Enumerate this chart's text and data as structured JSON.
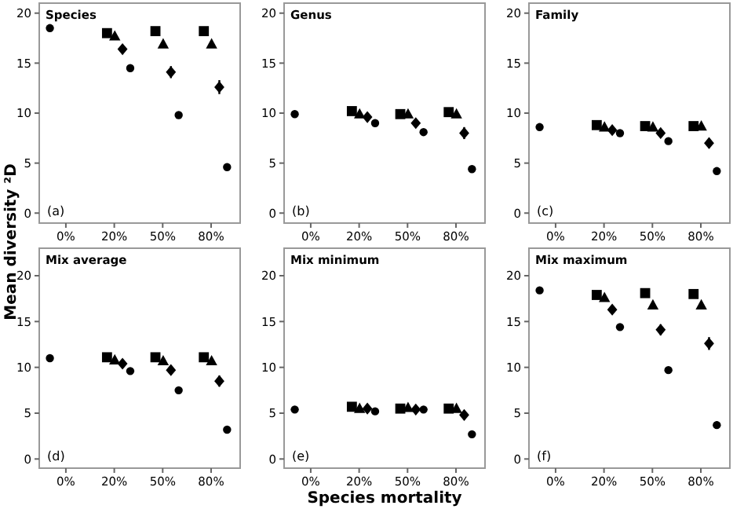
{
  "chart_data": [
    {
      "type": "scatter",
      "title": "Species",
      "ylabel": "Mean diversity ²D",
      "annotations": [
        "(a)"
      ],
      "categories": [
        "0%",
        "20%",
        "50%",
        "80%"
      ],
      "ylim": [
        -1,
        21
      ],
      "yticks": [
        0,
        5,
        10,
        15,
        20
      ],
      "series": [
        {
          "color": "#000000",
          "marker": "circle",
          "x": [
            "0%"
          ],
          "values": [
            18.5
          ]
        },
        {
          "color": "#000000",
          "marker": "square",
          "x": [
            "20%",
            "50%",
            "80%"
          ],
          "values": [
            18.0,
            18.2,
            18.2
          ]
        },
        {
          "color": "#000000",
          "marker": "triangle",
          "x": [
            "20%",
            "50%",
            "80%"
          ],
          "values": [
            17.7,
            16.9,
            16.9
          ]
        },
        {
          "color": "#000000",
          "marker": "diamond",
          "x": [
            "20%",
            "50%",
            "80%"
          ],
          "values": [
            16.4,
            14.1,
            12.6
          ],
          "errors": [
            0.3,
            0.6,
            0.7
          ]
        },
        {
          "color": "#000000",
          "marker": "circle",
          "x": [
            "20%",
            "50%",
            "80%"
          ],
          "values": [
            14.5,
            9.8,
            4.6
          ]
        }
      ]
    },
    {
      "type": "scatter",
      "title": "Genus",
      "annotations": [
        "(b)"
      ],
      "categories": [
        "0%",
        "20%",
        "50%",
        "80%"
      ],
      "ylim": [
        -1,
        21
      ],
      "yticks": [
        0,
        5,
        10,
        15,
        20
      ],
      "series": [
        {
          "color": "#000000",
          "marker": "circle",
          "x": [
            "0%"
          ],
          "values": [
            9.9
          ]
        },
        {
          "color": "#000000",
          "marker": "square",
          "x": [
            "20%",
            "50%",
            "80%"
          ],
          "values": [
            10.2,
            9.9,
            10.1
          ]
        },
        {
          "color": "#000000",
          "marker": "triangle",
          "x": [
            "20%",
            "50%",
            "80%"
          ],
          "values": [
            9.9,
            9.9,
            9.9
          ]
        },
        {
          "color": "#000000",
          "marker": "diamond",
          "x": [
            "20%",
            "50%",
            "80%"
          ],
          "values": [
            9.6,
            9.0,
            8.0
          ],
          "errors": [
            0.3,
            0.4,
            0.6
          ]
        },
        {
          "color": "#000000",
          "marker": "circle",
          "x": [
            "20%",
            "50%",
            "80%"
          ],
          "values": [
            9.0,
            8.1,
            4.4
          ]
        }
      ]
    },
    {
      "type": "scatter",
      "title": "Family",
      "annotations": [
        "(c)"
      ],
      "categories": [
        "0%",
        "20%",
        "50%",
        "80%"
      ],
      "ylim": [
        -1,
        21
      ],
      "yticks": [
        0,
        5,
        10,
        15,
        20
      ],
      "series": [
        {
          "color": "#000000",
          "marker": "circle",
          "x": [
            "0%"
          ],
          "values": [
            8.6
          ]
        },
        {
          "color": "#000000",
          "marker": "square",
          "x": [
            "20%",
            "50%",
            "80%"
          ],
          "values": [
            8.8,
            8.7,
            8.7
          ]
        },
        {
          "color": "#000000",
          "marker": "triangle",
          "x": [
            "20%",
            "50%",
            "80%"
          ],
          "values": [
            8.6,
            8.6,
            8.7
          ]
        },
        {
          "color": "#000000",
          "marker": "diamond",
          "x": [
            "20%",
            "50%",
            "80%"
          ],
          "values": [
            8.3,
            8.0,
            7.0
          ],
          "errors": [
            0.2,
            0.3,
            0.5
          ]
        },
        {
          "color": "#000000",
          "marker": "circle",
          "x": [
            "20%",
            "50%",
            "80%"
          ],
          "values": [
            8.0,
            7.2,
            4.2
          ]
        }
      ]
    },
    {
      "type": "scatter",
      "title": "Mix average",
      "annotations": [
        "(d)"
      ],
      "categories": [
        "0%",
        "20%",
        "50%",
        "80%"
      ],
      "ylim": [
        -1,
        23
      ],
      "yticks": [
        0,
        5,
        10,
        15,
        20
      ],
      "series": [
        {
          "color": "#000000",
          "marker": "circle",
          "x": [
            "0%"
          ],
          "values": [
            11.0
          ]
        },
        {
          "color": "#000000",
          "marker": "square",
          "x": [
            "20%",
            "50%",
            "80%"
          ],
          "values": [
            11.1,
            11.1,
            11.1
          ]
        },
        {
          "color": "#000000",
          "marker": "triangle",
          "x": [
            "20%",
            "50%",
            "80%"
          ],
          "values": [
            10.8,
            10.7,
            10.7
          ]
        },
        {
          "color": "#000000",
          "marker": "diamond",
          "x": [
            "20%",
            "50%",
            "80%"
          ],
          "values": [
            10.4,
            9.7,
            8.5
          ],
          "errors": [
            0.3,
            0.4,
            0.6
          ]
        },
        {
          "color": "#000000",
          "marker": "circle",
          "x": [
            "20%",
            "50%",
            "80%"
          ],
          "values": [
            9.6,
            7.5,
            3.2
          ],
          "errors": [
            null,
            null,
            0.4
          ]
        }
      ]
    },
    {
      "type": "scatter",
      "title": "Mix minimum",
      "xlabel": "Species mortality",
      "annotations": [
        "(e)"
      ],
      "categories": [
        "0%",
        "20%",
        "50%",
        "80%"
      ],
      "ylim": [
        -1,
        23
      ],
      "yticks": [
        0,
        5,
        10,
        15,
        20
      ],
      "series": [
        {
          "color": "#000000",
          "marker": "circle",
          "x": [
            "0%"
          ],
          "values": [
            5.4
          ]
        },
        {
          "color": "#000000",
          "marker": "square",
          "x": [
            "20%",
            "50%",
            "80%"
          ],
          "values": [
            5.7,
            5.5,
            5.5
          ]
        },
        {
          "color": "#000000",
          "marker": "triangle",
          "x": [
            "20%",
            "50%",
            "80%"
          ],
          "values": [
            5.5,
            5.6,
            5.5
          ]
        },
        {
          "color": "#000000",
          "marker": "diamond",
          "x": [
            "20%",
            "50%",
            "80%"
          ],
          "values": [
            5.5,
            5.4,
            4.8
          ],
          "errors": [
            0.2,
            0.2,
            0.3
          ]
        },
        {
          "color": "#000000",
          "marker": "circle",
          "x": [
            "20%",
            "50%",
            "80%"
          ],
          "values": [
            5.2,
            5.4,
            2.7
          ],
          "errors": [
            null,
            null,
            0.4
          ]
        }
      ]
    },
    {
      "type": "scatter",
      "title": "Mix maximum",
      "annotations": [
        "(f)"
      ],
      "categories": [
        "0%",
        "20%",
        "50%",
        "80%"
      ],
      "ylim": [
        -1,
        23
      ],
      "yticks": [
        0,
        5,
        10,
        15,
        20
      ],
      "series": [
        {
          "color": "#000000",
          "marker": "circle",
          "x": [
            "0%"
          ],
          "values": [
            18.4
          ]
        },
        {
          "color": "#000000",
          "marker": "square",
          "x": [
            "20%",
            "50%",
            "80%"
          ],
          "values": [
            17.9,
            18.1,
            18.0
          ]
        },
        {
          "color": "#000000",
          "marker": "triangle",
          "x": [
            "20%",
            "50%",
            "80%"
          ],
          "values": [
            17.6,
            16.8,
            16.8
          ]
        },
        {
          "color": "#000000",
          "marker": "diamond",
          "x": [
            "20%",
            "50%",
            "80%"
          ],
          "values": [
            16.3,
            14.1,
            12.6
          ],
          "errors": [
            0.3,
            0.6,
            0.7
          ]
        },
        {
          "color": "#000000",
          "marker": "circle",
          "x": [
            "20%",
            "50%",
            "80%"
          ],
          "values": [
            14.4,
            9.7,
            3.7
          ],
          "errors": [
            null,
            null,
            0.4
          ]
        }
      ]
    }
  ]
}
